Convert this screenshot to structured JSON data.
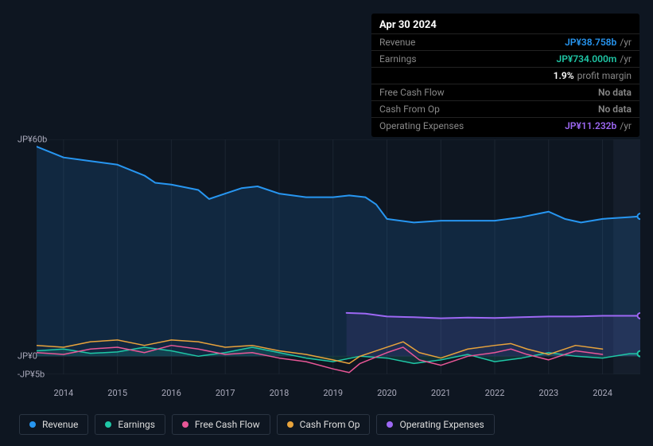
{
  "tooltip": {
    "date": "Apr 30 2024",
    "rows": [
      {
        "label": "Revenue",
        "value": "JP¥38.758b",
        "color": "#2796f1",
        "suffix": "/yr"
      },
      {
        "label": "Earnings",
        "value": "JP¥734.000m",
        "color": "#1fc7a6",
        "suffix": "/yr"
      },
      {
        "label": "",
        "value": "1.9%",
        "color": "#ffffff",
        "suffix": "profit margin"
      },
      {
        "label": "Free Cash Flow",
        "value": "No data",
        "color": "#888888",
        "suffix": ""
      },
      {
        "label": "Cash From Op",
        "value": "No data",
        "color": "#888888",
        "suffix": ""
      },
      {
        "label": "Operating Expenses",
        "value": "JP¥11.232b",
        "color": "#9d68f4",
        "suffix": "/yr"
      }
    ]
  },
  "chart": {
    "background": "#0e1621",
    "grid_color": "#1c2531",
    "axis_text_color": "#aab",
    "font_size": 11,
    "y_axis": {
      "min": -5,
      "max": 60,
      "ticks": [
        {
          "v": 60,
          "label": "JP¥60b"
        },
        {
          "v": 0,
          "label": "JP¥0"
        },
        {
          "v": -5,
          "label": "-JP¥5b"
        }
      ]
    },
    "x_axis": {
      "min": 2013.5,
      "max": 2024.7,
      "ticks": [
        2014,
        2015,
        2016,
        2017,
        2018,
        2019,
        2020,
        2021,
        2022,
        2023,
        2024
      ]
    },
    "future_band_start": 2024.2,
    "series": [
      {
        "name": "Revenue",
        "color": "#2796f1",
        "fill_opacity": 0.15,
        "line_width": 2,
        "data": [
          [
            2013.5,
            58
          ],
          [
            2014,
            55
          ],
          [
            2014.5,
            54
          ],
          [
            2015,
            53
          ],
          [
            2015.5,
            50
          ],
          [
            2015.7,
            48
          ],
          [
            2016,
            47.5
          ],
          [
            2016.5,
            46
          ],
          [
            2016.7,
            43.5
          ],
          [
            2017,
            45
          ],
          [
            2017.3,
            46.5
          ],
          [
            2017.6,
            47
          ],
          [
            2018,
            45
          ],
          [
            2018.5,
            44
          ],
          [
            2019,
            44
          ],
          [
            2019.3,
            44.5
          ],
          [
            2019.6,
            44
          ],
          [
            2019.8,
            42
          ],
          [
            2020,
            38
          ],
          [
            2020.5,
            37
          ],
          [
            2021,
            37.5
          ],
          [
            2021.5,
            37.5
          ],
          [
            2022,
            37.5
          ],
          [
            2022.5,
            38.5
          ],
          [
            2023,
            40
          ],
          [
            2023.3,
            38
          ],
          [
            2023.6,
            37
          ],
          [
            2024,
            38
          ],
          [
            2024.5,
            38.5
          ],
          [
            2024.7,
            38.7
          ]
        ],
        "end_marker": true
      },
      {
        "name": "Earnings",
        "color": "#1fc7a6",
        "fill_opacity": 0.15,
        "line_width": 1.5,
        "data": [
          [
            2013.5,
            1.5
          ],
          [
            2014,
            2
          ],
          [
            2014.5,
            0.8
          ],
          [
            2015,
            1.2
          ],
          [
            2015.5,
            2.5
          ],
          [
            2016,
            1.5
          ],
          [
            2016.5,
            0
          ],
          [
            2017,
            1
          ],
          [
            2017.5,
            2.5
          ],
          [
            2018,
            1
          ],
          [
            2018.5,
            -0.5
          ],
          [
            2019,
            -1.5
          ],
          [
            2019.5,
            0
          ],
          [
            2020,
            -0.5
          ],
          [
            2020.5,
            -2
          ],
          [
            2021,
            -1
          ],
          [
            2021.5,
            0.5
          ],
          [
            2022,
            -1.5
          ],
          [
            2022.5,
            -0.5
          ],
          [
            2023,
            1
          ],
          [
            2023.5,
            0
          ],
          [
            2024,
            -0.5
          ],
          [
            2024.5,
            0.7
          ],
          [
            2024.7,
            0.7
          ]
        ],
        "end_marker": true
      },
      {
        "name": "Free Cash Flow",
        "color": "#e85797",
        "fill_opacity": 0,
        "line_width": 1.5,
        "data": [
          [
            2013.5,
            1
          ],
          [
            2014,
            0.5
          ],
          [
            2014.5,
            2
          ],
          [
            2015,
            2.5
          ],
          [
            2015.5,
            1
          ],
          [
            2016,
            3
          ],
          [
            2016.5,
            2
          ],
          [
            2017,
            0.5
          ],
          [
            2017.5,
            1
          ],
          [
            2018,
            -0.5
          ],
          [
            2018.5,
            -1.5
          ],
          [
            2019,
            -3.5
          ],
          [
            2019.3,
            -4.5
          ],
          [
            2019.5,
            -2
          ],
          [
            2020,
            1
          ],
          [
            2020.3,
            2.5
          ],
          [
            2020.6,
            -1
          ],
          [
            2021,
            -2.5
          ],
          [
            2021.5,
            0
          ],
          [
            2022,
            1
          ],
          [
            2022.3,
            2
          ],
          [
            2022.6,
            0.5
          ],
          [
            2023,
            -1
          ],
          [
            2023.5,
            1.5
          ],
          [
            2024,
            0.5
          ]
        ],
        "end_marker": false
      },
      {
        "name": "Cash From Op",
        "color": "#e8a33c",
        "fill_opacity": 0,
        "line_width": 1.5,
        "data": [
          [
            2013.5,
            3
          ],
          [
            2014,
            2.5
          ],
          [
            2014.5,
            4
          ],
          [
            2015,
            4.5
          ],
          [
            2015.5,
            3
          ],
          [
            2016,
            4.5
          ],
          [
            2016.5,
            4
          ],
          [
            2017,
            2.5
          ],
          [
            2017.5,
            3
          ],
          [
            2018,
            1.5
          ],
          [
            2018.5,
            0.5
          ],
          [
            2019,
            -1
          ],
          [
            2019.3,
            -2
          ],
          [
            2019.5,
            0
          ],
          [
            2020,
            2.5
          ],
          [
            2020.3,
            4
          ],
          [
            2020.6,
            1
          ],
          [
            2021,
            -0.5
          ],
          [
            2021.5,
            2
          ],
          [
            2022,
            3
          ],
          [
            2022.3,
            3.5
          ],
          [
            2022.6,
            2
          ],
          [
            2023,
            0.5
          ],
          [
            2023.5,
            3
          ],
          [
            2024,
            2
          ]
        ],
        "end_marker": false
      },
      {
        "name": "Operating Expenses",
        "color": "#9d68f4",
        "fill_opacity": 0.1,
        "line_width": 2,
        "data": [
          [
            2019.25,
            12
          ],
          [
            2019.6,
            11.8
          ],
          [
            2020,
            11
          ],
          [
            2020.5,
            10.8
          ],
          [
            2021,
            10.5
          ],
          [
            2021.5,
            10.7
          ],
          [
            2022,
            10.6
          ],
          [
            2022.5,
            10.8
          ],
          [
            2023,
            11
          ],
          [
            2023.5,
            11
          ],
          [
            2024,
            11.2
          ],
          [
            2024.5,
            11.2
          ],
          [
            2024.7,
            11.2
          ]
        ],
        "end_marker": true
      }
    ]
  },
  "legend": [
    {
      "label": "Revenue",
      "color": "#2796f1"
    },
    {
      "label": "Earnings",
      "color": "#1fc7a6"
    },
    {
      "label": "Free Cash Flow",
      "color": "#e85797"
    },
    {
      "label": "Cash From Op",
      "color": "#e8a33c"
    },
    {
      "label": "Operating Expenses",
      "color": "#9d68f4"
    }
  ]
}
